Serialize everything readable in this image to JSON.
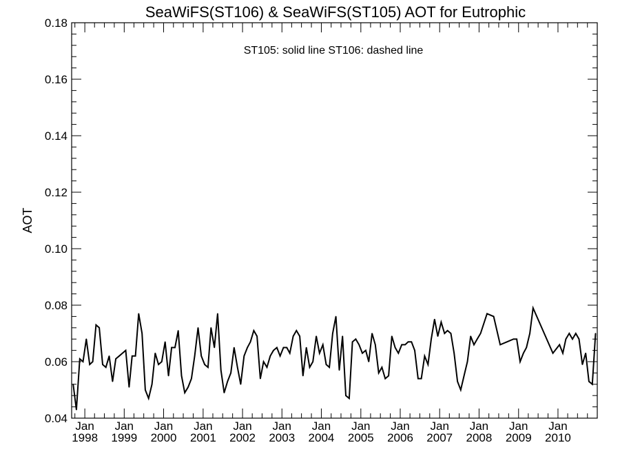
{
  "chart_data": {
    "type": "line",
    "title": "SeaWiFS(ST106) & SeaWiFS(ST105)  AOT for Eutrophic",
    "annotation": "ST105: solid line   ST106: dashed line",
    "xlabel": "",
    "ylabel": "AOT",
    "xlim": [
      "1997-09-01",
      "2010-12-31"
    ],
    "ylim": [
      0.04,
      0.18
    ],
    "yticks": [
      0.04,
      0.06,
      0.08,
      0.1,
      0.12,
      0.14,
      0.16,
      0.18
    ],
    "ytick_labels": [
      "0.04",
      "0.06",
      "0.08",
      "0.10",
      "0.12",
      "0.14",
      "0.16",
      "0.18"
    ],
    "xticks": [
      {
        "date": "1998-01-01",
        "month": "Jan",
        "year": "1998"
      },
      {
        "date": "1999-01-01",
        "month": "Jan",
        "year": "1999"
      },
      {
        "date": "2000-01-01",
        "month": "Jan",
        "year": "2000"
      },
      {
        "date": "2001-01-01",
        "month": "Jan",
        "year": "2001"
      },
      {
        "date": "2002-01-01",
        "month": "Jan",
        "year": "2002"
      },
      {
        "date": "2003-01-01",
        "month": "Jan",
        "year": "2003"
      },
      {
        "date": "2004-01-01",
        "month": "Jan",
        "year": "2004"
      },
      {
        "date": "2005-01-01",
        "month": "Jan",
        "year": "2005"
      },
      {
        "date": "2006-01-01",
        "month": "Jan",
        "year": "2006"
      },
      {
        "date": "2007-01-01",
        "month": "Jan",
        "year": "2007"
      },
      {
        "date": "2008-01-01",
        "month": "Jan",
        "year": "2008"
      },
      {
        "date": "2009-01-01",
        "month": "Jan",
        "year": "2009"
      },
      {
        "date": "2010-01-01",
        "month": "Jan",
        "year": "2010"
      }
    ],
    "grid": false,
    "series": [
      {
        "name": "ST105",
        "style": "solid",
        "color": "#000000",
        "x": [
          "1997-09",
          "1997-10",
          "1997-11",
          "1997-12",
          "1998-01",
          "1998-02",
          "1998-03",
          "1998-04",
          "1998-05",
          "1998-06",
          "1998-07",
          "1998-08",
          "1998-09",
          "1998-10",
          "1998-11",
          "1998-12",
          "1999-01",
          "1999-02",
          "1999-03",
          "1999-04",
          "1999-05",
          "1999-06",
          "1999-07",
          "1999-08",
          "1999-09",
          "1999-10",
          "1999-11",
          "1999-12",
          "2000-01",
          "2000-02",
          "2000-03",
          "2000-04",
          "2000-05",
          "2000-06",
          "2000-07",
          "2000-08",
          "2000-09",
          "2000-10",
          "2000-11",
          "2000-12",
          "2001-01",
          "2001-02",
          "2001-03",
          "2001-04",
          "2001-05",
          "2001-06",
          "2001-07",
          "2001-08",
          "2001-09",
          "2001-10",
          "2001-11",
          "2001-12",
          "2002-01",
          "2002-02",
          "2002-03",
          "2002-04",
          "2002-05",
          "2002-06",
          "2002-07",
          "2002-08",
          "2002-09",
          "2002-10",
          "2002-11",
          "2002-12",
          "2003-01",
          "2003-02",
          "2003-03",
          "2003-04",
          "2003-05",
          "2003-06",
          "2003-07",
          "2003-08",
          "2003-09",
          "2003-10",
          "2003-11",
          "2003-12",
          "2004-01",
          "2004-02",
          "2004-03",
          "2004-04",
          "2004-05",
          "2004-06",
          "2004-07",
          "2004-08",
          "2004-09",
          "2004-10",
          "2004-11",
          "2004-12",
          "2005-01",
          "2005-02",
          "2005-03",
          "2005-04",
          "2005-05",
          "2005-06",
          "2005-07",
          "2005-08",
          "2005-09",
          "2005-10",
          "2005-11",
          "2005-12",
          "2006-01",
          "2006-02",
          "2006-03",
          "2006-04",
          "2006-05",
          "2006-06",
          "2006-07",
          "2006-08",
          "2006-09",
          "2006-10",
          "2006-11",
          "2006-12",
          "2007-01",
          "2007-02",
          "2007-03",
          "2007-04",
          "2007-05",
          "2007-06",
          "2007-07",
          "2007-08",
          "2007-09",
          "2007-10",
          "2007-11",
          "2007-12",
          "2008-01",
          "2008-03",
          "2008-05",
          "2008-07",
          "2008-09",
          "2008-11",
          "2008-12",
          "2009-01",
          "2009-02",
          "2009-03",
          "2009-04",
          "2009-05",
          "2009-08",
          "2009-11",
          "2010-01",
          "2010-02",
          "2010-03",
          "2010-04",
          "2010-05",
          "2010-06",
          "2010-07",
          "2010-08",
          "2010-09",
          "2010-10",
          "2010-11",
          "2010-12"
        ],
        "values": [
          0.052,
          0.043,
          0.061,
          0.06,
          0.068,
          0.059,
          0.06,
          0.073,
          0.072,
          0.059,
          0.058,
          0.062,
          0.053,
          0.061,
          0.062,
          0.063,
          0.064,
          0.051,
          0.062,
          0.062,
          0.077,
          0.07,
          0.05,
          0.047,
          0.052,
          0.063,
          0.059,
          0.06,
          0.067,
          0.055,
          0.065,
          0.065,
          0.071,
          0.055,
          0.049,
          0.051,
          0.054,
          0.062,
          0.072,
          0.062,
          0.059,
          0.058,
          0.072,
          0.065,
          0.077,
          0.057,
          0.049,
          0.053,
          0.056,
          0.065,
          0.058,
          0.052,
          0.062,
          0.065,
          0.067,
          0.071,
          0.069,
          0.054,
          0.06,
          0.058,
          0.062,
          0.064,
          0.065,
          0.062,
          0.065,
          0.065,
          0.063,
          0.069,
          0.071,
          0.069,
          0.055,
          0.065,
          0.058,
          0.06,
          0.069,
          0.063,
          0.066,
          0.059,
          0.058,
          0.07,
          0.076,
          0.057,
          0.069,
          0.048,
          0.047,
          0.067,
          0.068,
          0.066,
          0.063,
          0.064,
          0.06,
          0.07,
          0.066,
          0.056,
          0.058,
          0.054,
          0.055,
          0.069,
          0.065,
          0.063,
          0.066,
          0.066,
          0.067,
          0.067,
          0.064,
          0.054,
          0.054,
          0.062,
          0.059,
          0.068,
          0.075,
          0.069,
          0.074,
          0.07,
          0.071,
          0.07,
          0.063,
          0.053,
          0.05,
          0.055,
          0.06,
          0.069,
          0.066,
          0.068,
          0.07,
          0.077,
          0.076,
          0.066,
          0.067,
          0.068,
          0.068,
          0.06,
          0.063,
          0.065,
          0.07,
          0.079,
          0.071,
          0.063,
          0.066,
          0.063,
          0.068,
          0.07,
          0.068,
          0.07,
          0.068,
          0.059,
          0.063,
          0.053,
          0.052,
          0.07
        ]
      }
    ]
  }
}
